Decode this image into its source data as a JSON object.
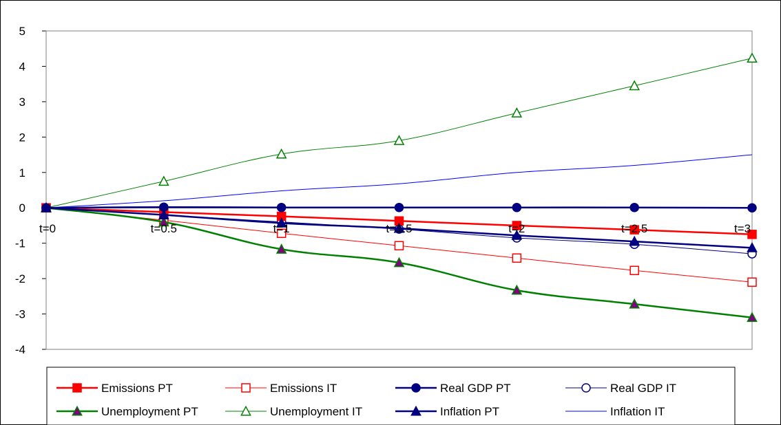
{
  "chart_data": {
    "type": "line",
    "categories": [
      "t=0",
      "t=0.5",
      "t=1",
      "t=1.5",
      "t=2",
      "t=2.5",
      "t=3"
    ],
    "ylim": [
      -4,
      5
    ],
    "yticks": [
      5,
      4,
      3,
      2,
      1,
      0,
      -1,
      -2,
      -3,
      -4
    ],
    "grid": false,
    "legend_position": "bottom",
    "series": [
      {
        "name": "Emissions PT",
        "values": [
          0,
          -0.12,
          -0.24,
          -0.37,
          -0.5,
          -0.62,
          -0.75
        ],
        "color": "#ff0000",
        "stroke_width": 2.5,
        "marker": "square",
        "marker_fill": true
      },
      {
        "name": "Emissions IT",
        "values": [
          0,
          -0.35,
          -0.72,
          -1.07,
          -1.42,
          -1.77,
          -2.1
        ],
        "color": "#ff0000",
        "stroke_width": 1,
        "marker": "square",
        "marker_fill": false
      },
      {
        "name": "Real GDP PT",
        "values": [
          0,
          0.02,
          0.01,
          0.01,
          0.01,
          0.01,
          0
        ],
        "color": "#000080",
        "stroke_width": 2.5,
        "marker": "circle",
        "marker_fill": true
      },
      {
        "name": "Real GDP IT",
        "values": [
          0,
          -0.2,
          -0.4,
          -0.6,
          -0.85,
          -1.03,
          -1.3
        ],
        "color": "#000080",
        "stroke_width": 1,
        "marker": "circle",
        "marker_fill": false
      },
      {
        "name": "Unemployment PT",
        "values": [
          0,
          -0.4,
          -1.17,
          -1.55,
          -2.33,
          -2.72,
          -3.1
        ],
        "color": "#008000",
        "stroke_width": 2.5,
        "marker": "triangle",
        "marker_fill": true,
        "marker_fill_color": "#800080"
      },
      {
        "name": "Unemployment IT",
        "values": [
          0,
          0.75,
          1.52,
          1.9,
          2.68,
          3.45,
          4.23
        ],
        "color": "#008000",
        "stroke_width": 1,
        "marker": "triangle",
        "marker_fill": false
      },
      {
        "name": "Inflation PT",
        "values": [
          0,
          -0.2,
          -0.43,
          -0.58,
          -0.78,
          -0.95,
          -1.13
        ],
        "color": "#000080",
        "stroke_width": 2.5,
        "marker": "triangle",
        "marker_fill": true
      },
      {
        "name": "Inflation IT",
        "values": [
          0,
          0.2,
          0.48,
          0.68,
          1.0,
          1.2,
          1.5
        ],
        "color": "#0000ff",
        "stroke_width": 1,
        "marker": "none",
        "marker_fill": false
      }
    ]
  }
}
